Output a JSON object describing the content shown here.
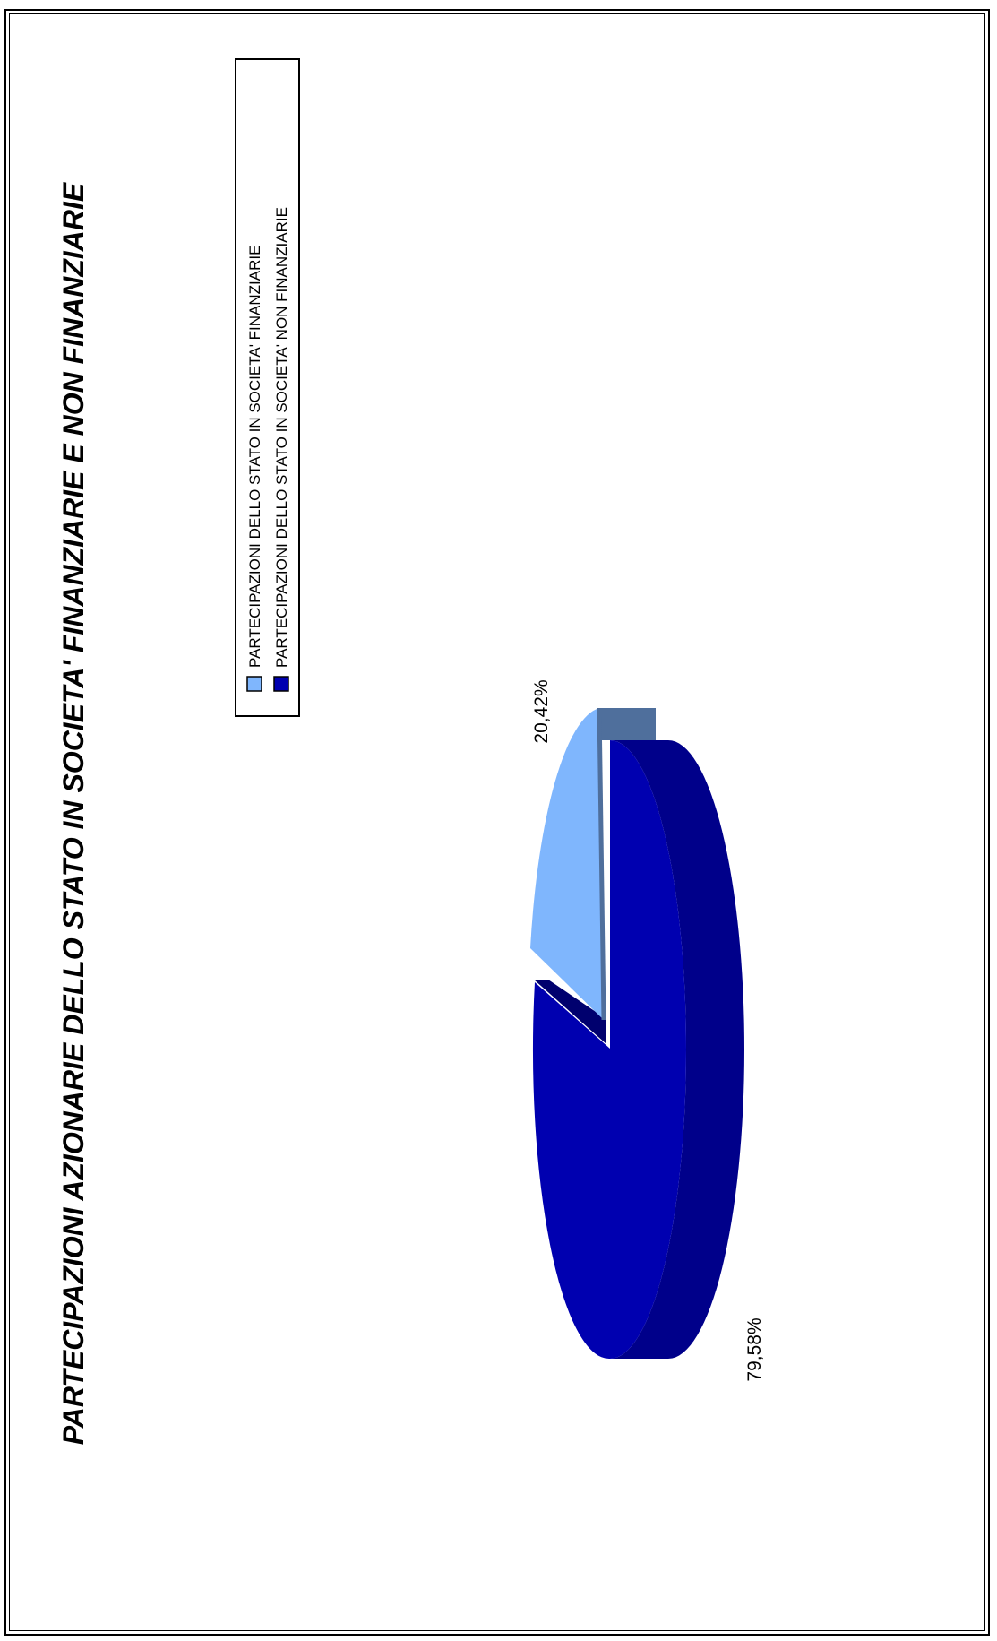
{
  "chart_data": {
    "type": "pie",
    "title": "PARTECIPAZIONI AZIONARIE DELLO STATO IN SOCIETA' FINANZIARIE E NON FINANZIARIE",
    "three_d": true,
    "orientation": "rotated 90° counter-clockwise",
    "legend_position": "right",
    "slices": [
      {
        "label": "PARTECIPAZIONI DELLO STATO IN SOCIETA' FINANZIARIE",
        "value": 20.42,
        "value_label": "20,42%",
        "color": "#7fb6fd",
        "exploded": true
      },
      {
        "label": "PARTECIPAZIONI DELLO STATO IN SOCIETA' NON FINANZIARIE",
        "value": 79.58,
        "value_label": "79,58%",
        "color": "#0000b0"
      }
    ]
  }
}
